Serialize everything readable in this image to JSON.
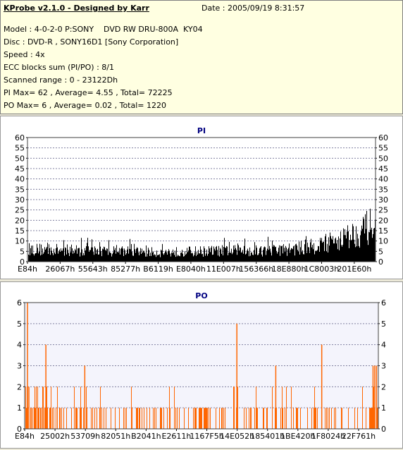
{
  "header": {
    "title": "KProbe v2.1.0 - Designed by Karr",
    "date": "Date : 2005/09/19 8:31:57",
    "lines": [
      "Model : 4-0-2-0 P:SONY    DVD RW DRU-800A  KY04",
      "Disc : DVD-R , SONY16D1 [Sony Corporation]",
      "Speed : 4x",
      "ECC blocks sum (PI/PO) : 8/1",
      "Scanned range : 0 - 23122Dh",
      "PI Max= 62 , Average= 4.55 , Total= 72225",
      "PO Max= 6 , Average= 0.02 , Total= 1220"
    ]
  },
  "chart_data": [
    {
      "type": "bar",
      "title": "PI",
      "color": "#000000",
      "ylim": [
        0,
        60
      ],
      "yticks": [
        0,
        5,
        10,
        15,
        20,
        25,
        30,
        35,
        40,
        45,
        50,
        55,
        60
      ],
      "xticks": [
        "E84h",
        "26067h",
        "55643h",
        "85277h",
        "B6119h",
        "E8040h",
        "11E007h",
        "156366h",
        "18E880h",
        "1C8003h",
        "201E60h"
      ],
      "grid": true,
      "profile": [
        {
          "x": 0.0,
          "base": 8,
          "amp": 6
        },
        {
          "x": 0.18,
          "base": 7,
          "amp": 5
        },
        {
          "x": 0.38,
          "base": 6,
          "amp": 5
        },
        {
          "x": 0.55,
          "base": 7,
          "amp": 6
        },
        {
          "x": 0.7,
          "base": 7,
          "amp": 6
        },
        {
          "x": 0.8,
          "base": 9,
          "amp": 7
        },
        {
          "x": 0.86,
          "base": 12,
          "amp": 8
        },
        {
          "x": 0.94,
          "base": 18,
          "amp": 12
        },
        {
          "x": 1.0,
          "base": 24,
          "amp": 10
        }
      ]
    },
    {
      "type": "bar",
      "title": "PO",
      "color": "#ff6600",
      "ylim": [
        0,
        6
      ],
      "yticks": [
        0,
        1,
        2,
        3,
        4,
        5,
        6
      ],
      "xticks": [
        "E84h",
        "25002h",
        "53709h",
        "82051h",
        "B2041h",
        "E2611h",
        "1167F5h",
        "14E052h",
        "185401h",
        "1BE420h",
        "1F8024h",
        "22F761h"
      ],
      "grid": true,
      "spikes": [
        {
          "x": 0.008,
          "value": 6
        },
        {
          "x": 0.012,
          "value": 2
        },
        {
          "x": 0.06,
          "value": 4
        },
        {
          "x": 0.17,
          "value": 3
        },
        {
          "x": 0.6,
          "value": 5
        },
        {
          "x": 0.71,
          "value": 3
        },
        {
          "x": 0.84,
          "value": 4
        },
        {
          "x": 0.985,
          "value": 3
        },
        {
          "x": 0.99,
          "value": 3
        },
        {
          "x": 0.995,
          "value": 3
        }
      ]
    }
  ]
}
